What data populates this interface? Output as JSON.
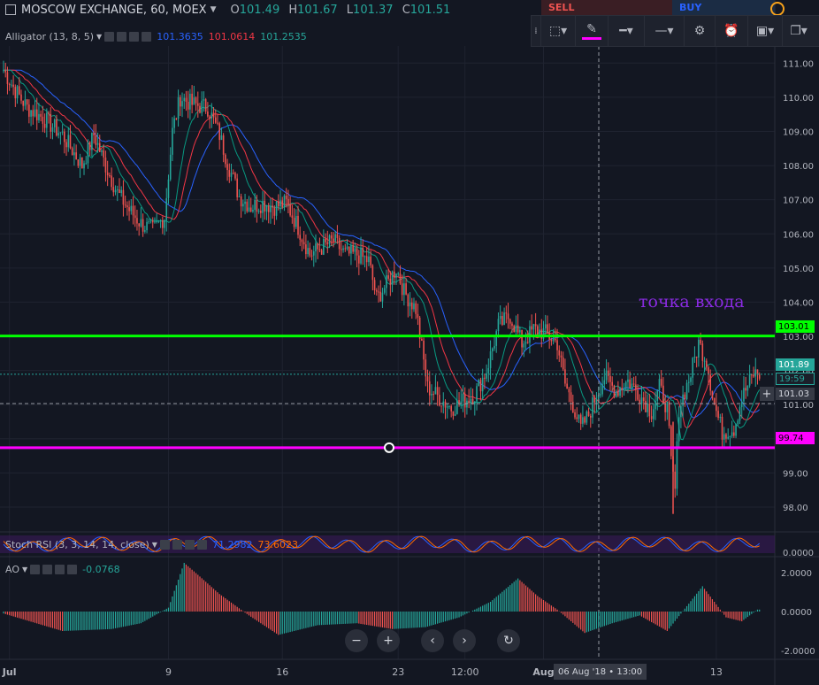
{
  "header": {
    "symbol": "MOSCOW EXCHANGE, 60, MOEX",
    "open": "101.49",
    "high": "101.67",
    "low": "101.37",
    "close": "101.51",
    "o_label": "O",
    "h_label": "H",
    "l_label": "L",
    "c_label": "C"
  },
  "trade": {
    "sell_label": "SELL",
    "buy_label": "BUY"
  },
  "indicators": {
    "alligator": {
      "label": "Alligator (13, 8, 5)",
      "jaw": "101.3635",
      "teeth": "101.0614",
      "lips": "101.2535"
    },
    "stoch": {
      "label": "Stoch RSI (3, 3, 14, 14, close)",
      "k": "71.2982",
      "d": "73.6023"
    },
    "ao": {
      "label": "AO",
      "value": "-0.0768"
    }
  },
  "annotation": "точка входа",
  "price_labels": {
    "green": "103.01",
    "dotted": "101.89",
    "timer": "19:59",
    "current": "101.03",
    "magenta": "99.74"
  },
  "time_tag": "06 Aug '18 • 13:00",
  "colors": {
    "up": "#26a69a",
    "down": "#ef5350",
    "green_line": "#00ff00",
    "magenta_line": "#ff00ff",
    "jaw": "#2962ff",
    "teeth": "#f23645",
    "lips": "#089981"
  },
  "chart_data": {
    "type": "candlestick",
    "ylim": [
      97.3,
      111.5
    ],
    "y_ticks": [
      "111.00",
      "110.00",
      "109.00",
      "108.00",
      "107.00",
      "106.00",
      "105.00",
      "104.00",
      "103.00",
      "102.00",
      "101.00",
      "100.00",
      "99.00",
      "98.00"
    ],
    "x_ticks": [
      "Jul",
      "9",
      "16",
      "23",
      "12:00",
      "Aug",
      "13"
    ],
    "x_tick_index": [
      3,
      84,
      142,
      201,
      235,
      275,
      363
    ],
    "horizontal_lines": [
      103.01,
      101.89,
      101.03,
      99.74
    ],
    "anchor_close": [
      [
        0,
        110.8
      ],
      [
        6,
        110.2
      ],
      [
        12,
        109.7
      ],
      [
        20,
        109.4
      ],
      [
        30,
        108.9
      ],
      [
        40,
        108.0
      ],
      [
        46,
        108.9
      ],
      [
        52,
        108.0
      ],
      [
        58,
        107.2
      ],
      [
        64,
        106.7
      ],
      [
        70,
        106.3
      ],
      [
        76,
        106.1
      ],
      [
        82,
        106.5
      ],
      [
        86,
        109.0
      ],
      [
        90,
        110.0
      ],
      [
        96,
        109.8
      ],
      [
        104,
        109.7
      ],
      [
        110,
        108.9
      ],
      [
        114,
        108.1
      ],
      [
        120,
        107.1
      ],
      [
        126,
        106.8
      ],
      [
        132,
        106.9
      ],
      [
        138,
        106.8
      ],
      [
        144,
        106.9
      ],
      [
        150,
        106.2
      ],
      [
        156,
        105.4
      ],
      [
        162,
        105.6
      ],
      [
        168,
        105.8
      ],
      [
        174,
        105.4
      ],
      [
        180,
        105.4
      ],
      [
        186,
        105.2
      ],
      [
        190,
        104.1
      ],
      [
        196,
        104.6
      ],
      [
        200,
        105.0
      ],
      [
        204,
        104.3
      ],
      [
        210,
        103.8
      ],
      [
        216,
        101.5
      ],
      [
        222,
        101.2
      ],
      [
        228,
        100.9
      ],
      [
        234,
        101.1
      ],
      [
        240,
        101.3
      ],
      [
        246,
        102.0
      ],
      [
        252,
        103.3
      ],
      [
        258,
        103.6
      ],
      [
        264,
        102.8
      ],
      [
        270,
        103.2
      ],
      [
        276,
        103.1
      ],
      [
        282,
        102.8
      ],
      [
        286,
        101.6
      ],
      [
        290,
        101.0
      ],
      [
        294,
        100.3
      ],
      [
        298,
        100.7
      ],
      [
        302,
        101.3
      ],
      [
        306,
        101.8
      ],
      [
        312,
        101.4
      ],
      [
        318,
        101.7
      ],
      [
        324,
        101.3
      ],
      [
        330,
        100.8
      ],
      [
        334,
        101.5
      ],
      [
        338,
        100.9
      ],
      [
        340,
        99.3
      ],
      [
        342,
        98.5
      ],
      [
        344,
        100.9
      ],
      [
        350,
        101.9
      ],
      [
        354,
        102.8
      ],
      [
        358,
        102.3
      ],
      [
        362,
        101.0
      ],
      [
        366,
        100.2
      ],
      [
        372,
        100.3
      ],
      [
        376,
        101.2
      ],
      [
        382,
        101.9
      ]
    ],
    "ao_anchors": [
      [
        0,
        -0.1
      ],
      [
        30,
        -1.0
      ],
      [
        55,
        -0.9
      ],
      [
        70,
        -0.6
      ],
      [
        84,
        0.2
      ],
      [
        92,
        2.5
      ],
      [
        100,
        1.8
      ],
      [
        110,
        0.9
      ],
      [
        125,
        -0.2
      ],
      [
        140,
        -1.2
      ],
      [
        160,
        -0.7
      ],
      [
        180,
        -0.6
      ],
      [
        198,
        -0.9
      ],
      [
        215,
        -0.8
      ],
      [
        232,
        -0.3
      ],
      [
        248,
        0.5
      ],
      [
        262,
        1.7
      ],
      [
        272,
        0.8
      ],
      [
        282,
        0.1
      ],
      [
        296,
        -1.1
      ],
      [
        310,
        -0.6
      ],
      [
        324,
        -0.2
      ],
      [
        338,
        -1.0
      ],
      [
        356,
        1.3
      ],
      [
        368,
        -0.3
      ],
      [
        376,
        -0.5
      ],
      [
        384,
        0.1
      ]
    ]
  }
}
